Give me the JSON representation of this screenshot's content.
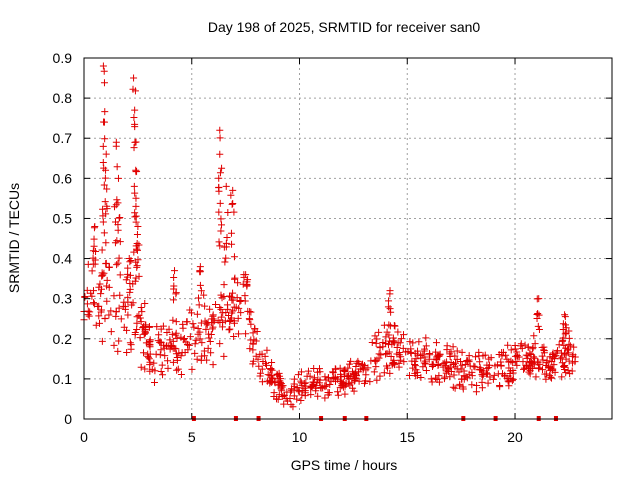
{
  "chart_data": {
    "type": "scatter",
    "title": "Day 198 of 2025, SRMTID for receiver san0",
    "xlabel": "GPS time / hours",
    "ylabel": "SRMTID / TECUs",
    "xlim": [
      0,
      24.5
    ],
    "ylim": [
      0,
      0.9
    ],
    "xticks": [
      0,
      5,
      10,
      15,
      20
    ],
    "yticks": [
      0,
      0.1,
      0.2,
      0.3,
      0.4,
      0.5,
      0.6,
      0.7,
      0.8,
      0.9
    ],
    "xtick_labels": [
      "0",
      "5",
      "10",
      "15",
      "20"
    ],
    "ytick_labels": [
      "0",
      "0.1",
      "0.2",
      "0.3",
      "0.4",
      "0.5",
      "0.6",
      "0.7",
      "0.8",
      "0.9"
    ],
    "grid": true,
    "marker": "+",
    "color": "#e00000",
    "x_range_of_data": [
      0,
      22.8
    ],
    "baseline_markers_x": [
      5.1,
      7.05,
      8.1,
      11.0,
      12.1,
      13.1,
      17.6,
      19.1,
      21.1,
      21.9
    ],
    "envelope": [
      {
        "x": 0.0,
        "mid": 0.34,
        "spread": 0.06
      },
      {
        "x": 0.5,
        "mid": 0.3,
        "spread": 0.08
      },
      {
        "x": 1.0,
        "mid": 0.3,
        "spread": 0.1
      },
      {
        "x": 1.5,
        "mid": 0.27,
        "spread": 0.09
      },
      {
        "x": 2.0,
        "mid": 0.3,
        "spread": 0.1
      },
      {
        "x": 2.5,
        "mid": 0.27,
        "spread": 0.09
      },
      {
        "x": 3.0,
        "mid": 0.17,
        "spread": 0.05
      },
      {
        "x": 4.0,
        "mid": 0.17,
        "spread": 0.05
      },
      {
        "x": 5.0,
        "mid": 0.2,
        "spread": 0.06
      },
      {
        "x": 6.0,
        "mid": 0.23,
        "spread": 0.07
      },
      {
        "x": 7.0,
        "mid": 0.3,
        "spread": 0.08
      },
      {
        "x": 7.5,
        "mid": 0.26,
        "spread": 0.06
      },
      {
        "x": 8.0,
        "mid": 0.17,
        "spread": 0.05
      },
      {
        "x": 8.7,
        "mid": 0.1,
        "spread": 0.03
      },
      {
        "x": 9.3,
        "mid": 0.06,
        "spread": 0.025
      },
      {
        "x": 10.0,
        "mid": 0.08,
        "spread": 0.03
      },
      {
        "x": 11.0,
        "mid": 0.09,
        "spread": 0.03
      },
      {
        "x": 12.0,
        "mid": 0.1,
        "spread": 0.03
      },
      {
        "x": 13.0,
        "mid": 0.12,
        "spread": 0.03
      },
      {
        "x": 14.0,
        "mid": 0.18,
        "spread": 0.05
      },
      {
        "x": 15.0,
        "mid": 0.16,
        "spread": 0.04
      },
      {
        "x": 16.0,
        "mid": 0.14,
        "spread": 0.04
      },
      {
        "x": 17.0,
        "mid": 0.13,
        "spread": 0.04
      },
      {
        "x": 18.0,
        "mid": 0.12,
        "spread": 0.035
      },
      {
        "x": 19.0,
        "mid": 0.12,
        "spread": 0.035
      },
      {
        "x": 20.0,
        "mid": 0.14,
        "spread": 0.04
      },
      {
        "x": 21.0,
        "mid": 0.15,
        "spread": 0.04
      },
      {
        "x": 21.5,
        "mid": 0.12,
        "spread": 0.035
      },
      {
        "x": 22.0,
        "mid": 0.15,
        "spread": 0.04
      },
      {
        "x": 22.8,
        "mid": 0.17,
        "spread": 0.04
      }
    ],
    "peaks": [
      {
        "x": 0.5,
        "y": 0.48
      },
      {
        "x": 0.9,
        "y": 0.88
      },
      {
        "x": 0.95,
        "y": 0.74
      },
      {
        "x": 1.0,
        "y": 0.62
      },
      {
        "x": 1.5,
        "y": 0.69
      },
      {
        "x": 1.6,
        "y": 0.6
      },
      {
        "x": 2.1,
        "y": 0.4
      },
      {
        "x": 2.3,
        "y": 0.85
      },
      {
        "x": 2.35,
        "y": 0.77
      },
      {
        "x": 2.4,
        "y": 0.62
      },
      {
        "x": 2.5,
        "y": 0.48
      },
      {
        "x": 4.2,
        "y": 0.37
      },
      {
        "x": 5.4,
        "y": 0.38
      },
      {
        "x": 6.3,
        "y": 0.72
      },
      {
        "x": 6.3,
        "y": 0.66
      },
      {
        "x": 6.6,
        "y": 0.58
      },
      {
        "x": 6.9,
        "y": 0.57
      },
      {
        "x": 7.5,
        "y": 0.36
      },
      {
        "x": 14.2,
        "y": 0.32
      },
      {
        "x": 21.1,
        "y": 0.3
      },
      {
        "x": 22.3,
        "y": 0.26
      }
    ]
  }
}
